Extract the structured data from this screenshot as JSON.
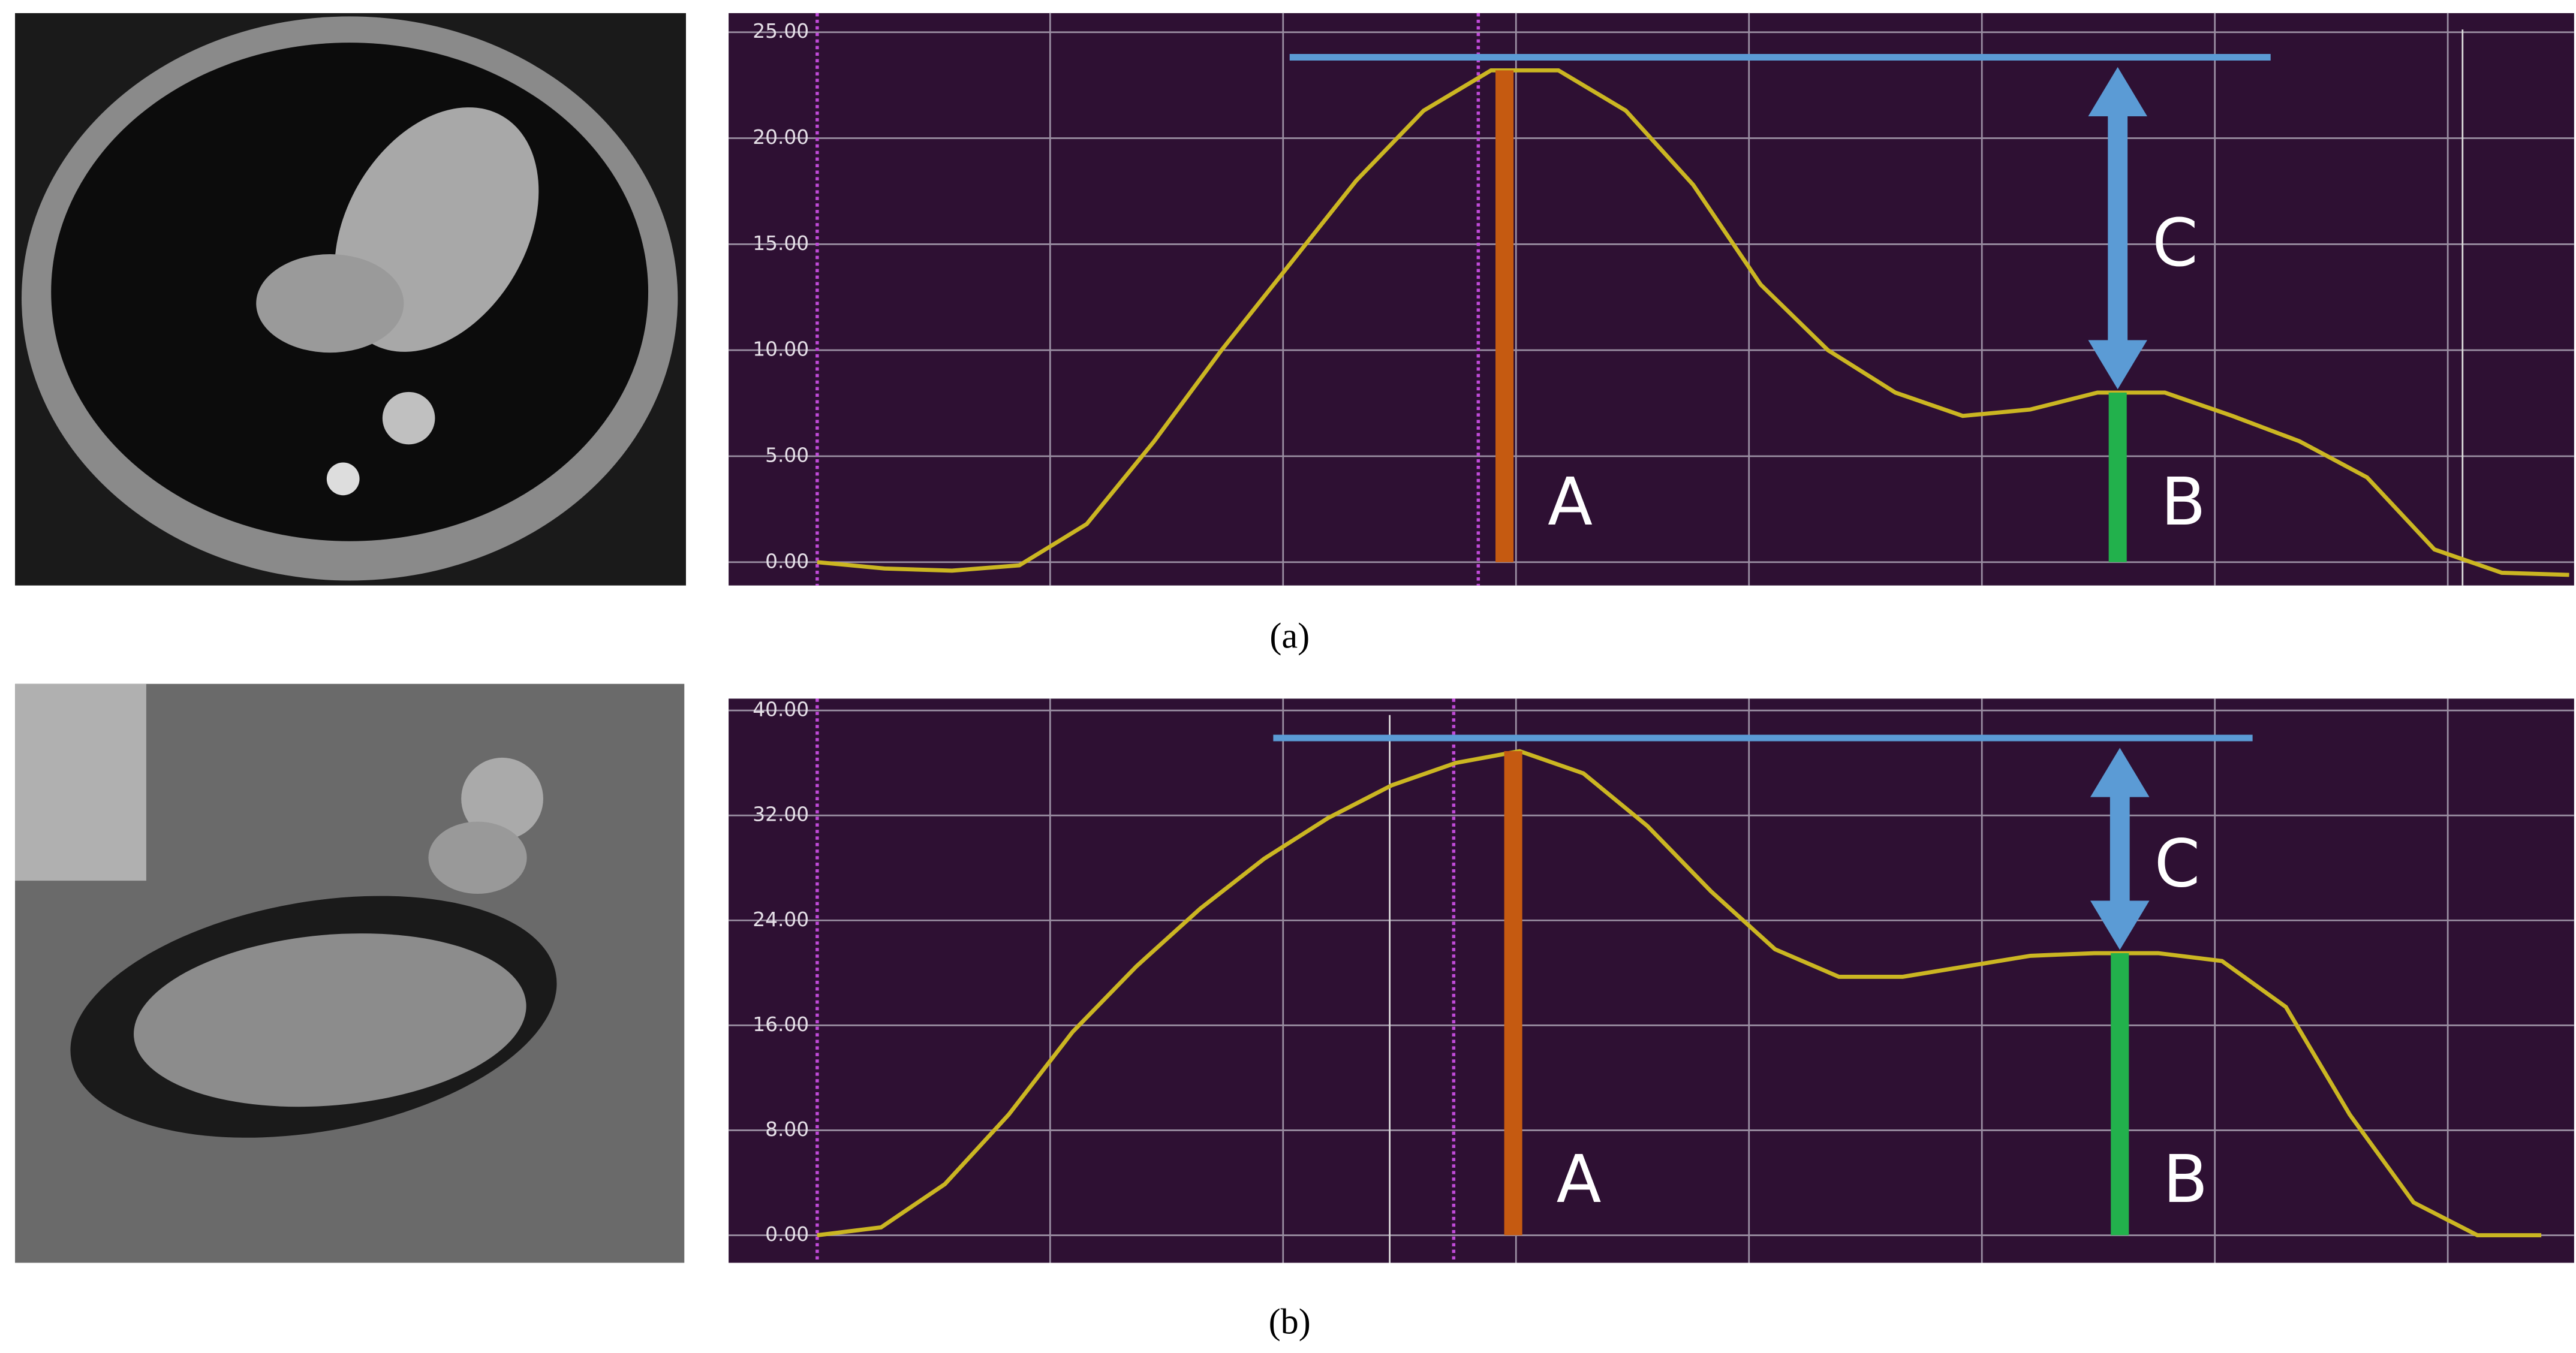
{
  "chart_data": [
    {
      "type": "line",
      "caption": "(a)",
      "color": "#cbb622",
      "background": "#2e1033",
      "grid": true,
      "ylim": [
        -1.1,
        25.9
      ],
      "yticks": [
        {
          "value": 0,
          "label": "0.00"
        },
        {
          "value": 5,
          "label": "5.00"
        },
        {
          "value": 10,
          "label": "10.00"
        },
        {
          "value": 15,
          "label": "15.00"
        },
        {
          "value": 20,
          "label": "20.00"
        },
        {
          "value": 25,
          "label": "25.00"
        }
      ],
      "values": [
        0,
        -0.3,
        -0.4,
        -0.15,
        1.8,
        5.7,
        10,
        14,
        18,
        21.3,
        23.2,
        23.2,
        21.3,
        17.8,
        13.1,
        10,
        8,
        6.9,
        7.2,
        8,
        8,
        6.9,
        5.7,
        4,
        0.6,
        -0.5,
        -0.6
      ],
      "markers": [
        {
          "label": "A",
          "color": "#c55a11",
          "value": 23.2
        },
        {
          "label": "B",
          "color": "#22b14c",
          "value": 8
        }
      ],
      "difference": {
        "label": "C",
        "color": "#5b9bd5"
      }
    },
    {
      "type": "line",
      "caption": "(b)",
      "color": "#cbb622",
      "background": "#2e1033",
      "grid": true,
      "ylim": [
        -2.1,
        40.9
      ],
      "yticks": [
        {
          "value": 0,
          "label": "0.00"
        },
        {
          "value": 8,
          "label": "8.00"
        },
        {
          "value": 16,
          "label": "16.00"
        },
        {
          "value": 24,
          "label": "24.00"
        },
        {
          "value": 32,
          "label": "32.00"
        },
        {
          "value": 40,
          "label": "40.00"
        }
      ],
      "values": [
        0,
        0.6,
        3.9,
        9.2,
        15.5,
        20.5,
        24.9,
        28.7,
        31.8,
        34.3,
        36,
        36.9,
        35.2,
        31.2,
        26.2,
        21.8,
        19.7,
        19.7,
        20.5,
        21.3,
        21.5,
        21.5,
        20.9,
        17.4,
        9.2,
        2.5,
        0,
        0
      ],
      "markers": [
        {
          "label": "A",
          "color": "#c55a11",
          "value": 36.9
        },
        {
          "label": "B",
          "color": "#22b14c",
          "value": 21.5
        }
      ],
      "difference": {
        "label": "C",
        "color": "#5b9bd5"
      }
    }
  ]
}
